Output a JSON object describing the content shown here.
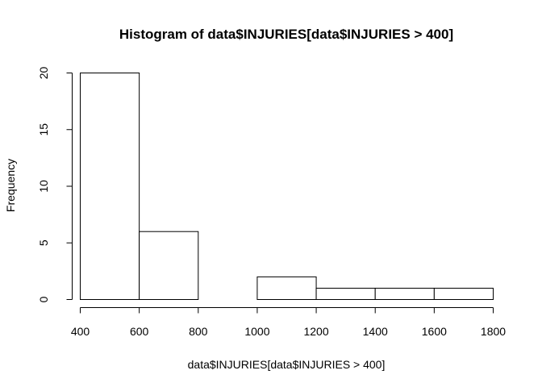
{
  "chart_data": {
    "type": "bar",
    "title": "Histogram of data$INJURIES[data$INJURIES > 400]",
    "xlabel": "data$INJURIES[data$INJURIES > 400]",
    "ylabel": "Frequency",
    "bins": [
      {
        "start": 400,
        "end": 600,
        "count": 20
      },
      {
        "start": 600,
        "end": 800,
        "count": 6
      },
      {
        "start": 800,
        "end": 1000,
        "count": 0
      },
      {
        "start": 1000,
        "end": 1200,
        "count": 2
      },
      {
        "start": 1200,
        "end": 1400,
        "count": 1
      },
      {
        "start": 1400,
        "end": 1600,
        "count": 1
      },
      {
        "start": 1600,
        "end": 1800,
        "count": 1
      }
    ],
    "xlim": [
      400,
      1800
    ],
    "ylim": [
      0,
      20
    ],
    "xticks": [
      "400",
      "600",
      "800",
      "1000",
      "1200",
      "1400",
      "1600",
      "1800"
    ],
    "yticks": [
      "0",
      "5",
      "10",
      "15",
      "20"
    ],
    "grid": false
  }
}
